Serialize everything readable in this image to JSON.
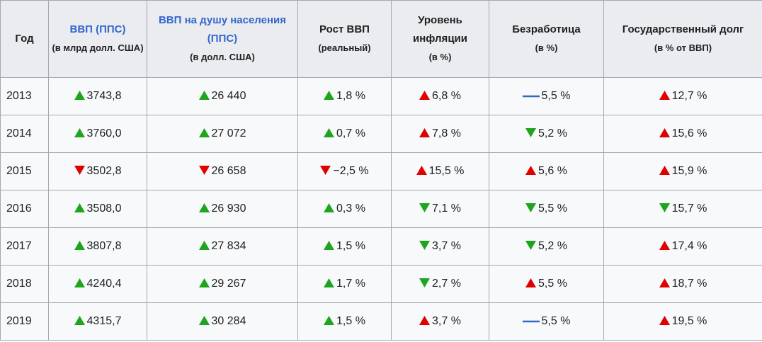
{
  "table": {
    "header": [
      {
        "title": "Год"
      },
      {
        "title": "ВВП (ППС)",
        "subtitle": "(в млрд долл. США)"
      },
      {
        "title": "ВВП на душу населения (ППС)",
        "subtitle": "(в долл. США)"
      },
      {
        "title": "Рост ВВП",
        "subtitle": "(реальный)"
      },
      {
        "title": "Уровень инфляции",
        "subtitle": "(в %)"
      },
      {
        "title": "Безработица",
        "subtitle": "(в %)"
      },
      {
        "title": "Государственный долг",
        "subtitle": "(в % от ВВП)"
      }
    ],
    "rows": [
      [
        "2013",
        "3743,8",
        "26 440",
        "1,8 %",
        "6,8 %",
        "5,5 %",
        "12,7 %"
      ],
      [
        "2014",
        "3760,0",
        "27 072",
        "0,7 %",
        "7,8 %",
        "5,2 %",
        "15,6 %"
      ],
      [
        "2015",
        "3502,8",
        "26 658",
        "−2,5 %",
        "15,5 %",
        "5,6 %",
        "15,9 %"
      ],
      [
        "2016",
        "3508,0",
        "26 930",
        "0,3 %",
        "7,1 %",
        "5,5 %",
        "15,7 %"
      ],
      [
        "2017",
        "3807,8",
        "27 834",
        "1,5 %",
        "3,7 %",
        "5,2 %",
        "17,4 %"
      ],
      [
        "2018",
        "4240,4",
        "29 267",
        "1,7 %",
        "2,7 %",
        "5,5 %",
        "18,7 %"
      ],
      [
        "2019",
        "4315,7",
        "30 284",
        "1,5 %",
        "3,7 %",
        "5,5 %",
        "19,5 %"
      ]
    ]
  }
}
